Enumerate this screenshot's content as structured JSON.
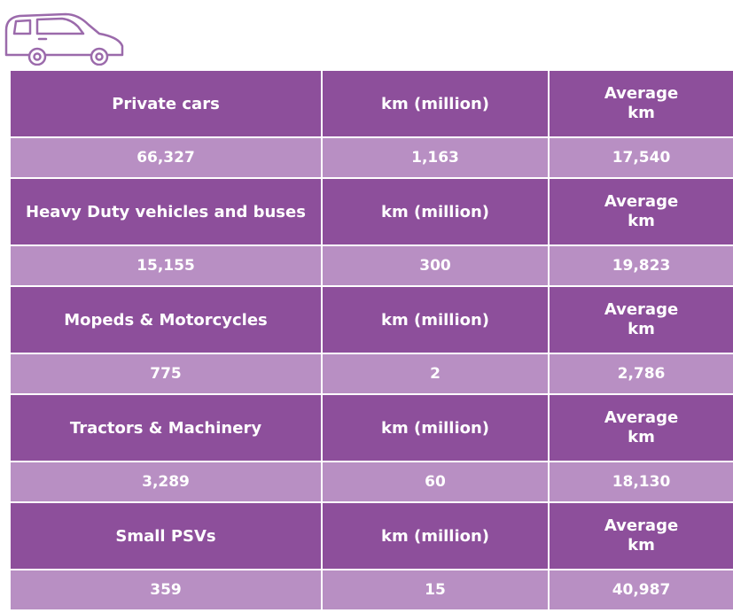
{
  "table": {
    "groups": [
      {
        "header": [
          "Private cars",
          "km (million)",
          "Average km"
        ],
        "values": [
          "66,327",
          "1,163",
          "17,540"
        ]
      },
      {
        "header": [
          "Heavy Duty vehicles and buses",
          "km (million)",
          "Average km"
        ],
        "values": [
          "15,155",
          "300",
          "19,823"
        ]
      },
      {
        "header": [
          "Mopeds & Motorcycles",
          "km (million)",
          "Average km"
        ],
        "values": [
          "775",
          "2",
          "2,786"
        ]
      },
      {
        "header": [
          "Tractors & Machinery",
          "km (million)",
          "Average km"
        ],
        "values": [
          "3,289",
          "60",
          "18,130"
        ]
      },
      {
        "header": [
          "Small PSVs",
          "km (million)",
          "Average km"
        ],
        "values": [
          "359",
          "15",
          "40,987"
        ]
      }
    ]
  }
}
